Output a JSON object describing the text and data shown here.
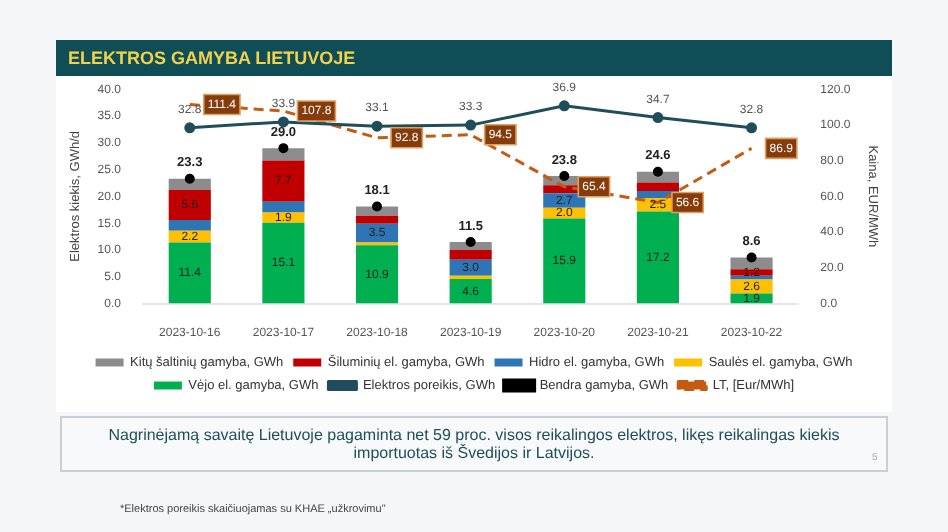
{
  "chart_data": {
    "type": "bar",
    "title": "ELEKTROS GAMYBA LIETUVOJE",
    "ylabel": "Elektros kiekis, GWh/d",
    "y2label": "Kaina, EUR/MWh",
    "categories": [
      "2023-10-16",
      "2023-10-17",
      "2023-10-18",
      "2023-10-19",
      "2023-10-20",
      "2023-10-21",
      "2023-10-22"
    ],
    "stacked": true,
    "ylim": [
      0,
      40
    ],
    "yticks": [
      {
        "value": 0,
        "label": "0.0"
      },
      {
        "value": 5,
        "label": "5.0"
      },
      {
        "value": 10,
        "label": "10.0"
      },
      {
        "value": 15,
        "label": "15.0"
      },
      {
        "value": 20,
        "label": "20.0"
      },
      {
        "value": 25,
        "label": "25.0"
      },
      {
        "value": 30,
        "label": "30.0"
      },
      {
        "value": 35,
        "label": "35.0"
      },
      {
        "value": 40,
        "label": "40.0"
      }
    ],
    "y2lim": [
      0,
      120
    ],
    "y2ticks": [
      {
        "value": 0,
        "label": "0.0"
      },
      {
        "value": 20,
        "label": "20.0"
      },
      {
        "value": 40,
        "label": "40.0"
      },
      {
        "value": 60,
        "label": "60.0"
      },
      {
        "value": 80,
        "label": "80.0"
      },
      {
        "value": 100,
        "label": "100.0"
      },
      {
        "value": 120,
        "label": "120.0"
      }
    ],
    "grid": false,
    "legend": "bottom",
    "series": [
      {
        "name": "Vėjo el. gamyba, GWh",
        "color": "#00b050",
        "values": [
          11.4,
          15.1,
          10.9,
          4.6,
          15.9,
          17.2,
          1.9
        ],
        "value_labels": [
          "11.4",
          "15.1",
          "10.9",
          "4.6",
          "15.9",
          "17.2",
          "1.9"
        ]
      },
      {
        "name": "Saulės el. gamyba, GWh",
        "color": "#ffc000",
        "values": [
          2.2,
          1.9,
          0.5,
          0.6,
          2.0,
          2.5,
          2.6
        ],
        "value_labels": [
          "2.2",
          "1.9",
          null,
          null,
          "2.0",
          "2.5",
          "2.6"
        ]
      },
      {
        "name": "Hidro el. gamyba, GWh",
        "color": "#2e75b6",
        "values": [
          2.0,
          2.0,
          3.5,
          3.0,
          2.7,
          1.3,
          0.7
        ],
        "value_labels": [
          null,
          null,
          "3.5",
          "3.0",
          "2.7",
          null,
          null
        ]
      },
      {
        "name": "Šiluminių el. gamyba, GWh",
        "color": "#c00000",
        "values": [
          5.6,
          7.7,
          1.5,
          1.8,
          1.5,
          1.6,
          1.2
        ],
        "value_labels": [
          "5.6",
          "7.7",
          null,
          null,
          null,
          null,
          "1.2"
        ]
      },
      {
        "name": "Kitų šaltinių gamyba, GWh",
        "color": "#8c8c8c",
        "values": [
          2.1,
          2.3,
          1.7,
          1.5,
          1.7,
          2.0,
          2.2
        ]
      },
      {
        "name": "Elektros poreikis, GWh",
        "type": "line",
        "color": "#1f4e5a",
        "marker": "circle",
        "values": [
          32.8,
          33.9,
          33.1,
          33.3,
          36.9,
          34.7,
          32.8
        ],
        "value_labels": [
          "32.8",
          "33.9",
          "33.1",
          "33.3",
          "36.9",
          "34.7",
          "32.8"
        ]
      },
      {
        "name": "Bendra gamyba, GWh",
        "type": "scatter",
        "color": "#000000",
        "marker": "circle",
        "values": [
          23.3,
          29.0,
          18.1,
          11.5,
          23.8,
          24.6,
          8.6
        ],
        "value_labels": [
          "23.3",
          "29.0",
          "18.1",
          "11.5",
          "23.8",
          "24.6",
          "8.6"
        ]
      },
      {
        "name": "LT, [Eur/MWh]",
        "type": "line",
        "axis": "y2",
        "color": "#c55a11",
        "line_style": "dashed",
        "values": [
          111.4,
          107.8,
          92.8,
          94.5,
          65.4,
          56.6,
          86.9
        ],
        "value_labels": [
          "111.4",
          "107.8",
          "92.8",
          "94.5",
          "65.4",
          "56.6",
          "86.9"
        ]
      }
    ],
    "annotations": [
      "Nagrinėjamą savaitę Lietuvoje pagaminta net 59 proc. visos reikalingos elektros, likęs reikalingas kiekis importuotas iš Švedijos ir Latvijos.",
      "*Elektros poreikis skaičiuojamas su KHAE „užkrovimu\"",
      "5"
    ]
  }
}
